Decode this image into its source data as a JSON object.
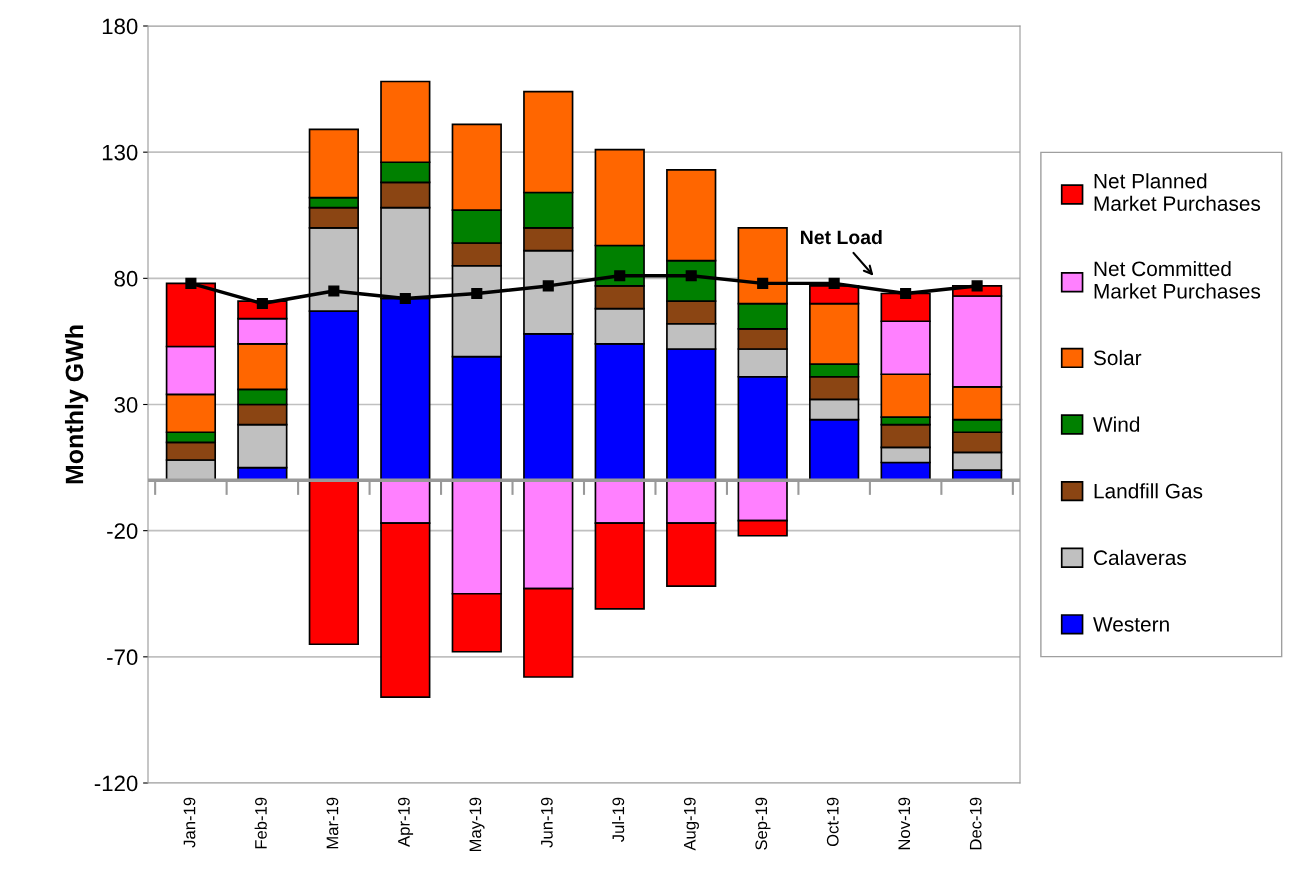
{
  "chart_data": {
    "type": "bar",
    "stacked": true,
    "ylabel": "Monthly GWh",
    "categories": [
      "Jan-19",
      "Feb-19",
      "Mar-19",
      "Apr-19",
      "May-19",
      "Jun-19",
      "Jul-19",
      "Aug-19",
      "Sep-19",
      "Oct-19",
      "Nov-19",
      "Dec-19"
    ],
    "ylim": [
      -120,
      180
    ],
    "yticks": [
      -120,
      -70,
      -20,
      30,
      80,
      130,
      180
    ],
    "grid": "y",
    "legend": "right",
    "series": [
      {
        "name": "Western",
        "color": "#0000ff",
        "values": [
          0,
          5,
          67,
          72,
          49,
          58,
          54,
          52,
          41,
          24,
          7,
          4
        ]
      },
      {
        "name": "Calaveras",
        "color": "#c0c0c0",
        "values": [
          8,
          17,
          33,
          36,
          36,
          33,
          14,
          10,
          11,
          8,
          6,
          7
        ]
      },
      {
        "name": "Landfill Gas",
        "color": "#8b4513",
        "values": [
          7,
          8,
          8,
          10,
          9,
          9,
          9,
          9,
          8,
          9,
          9,
          8
        ]
      },
      {
        "name": "Wind",
        "color": "#008000",
        "values": [
          4,
          6,
          4,
          8,
          13,
          14,
          16,
          16,
          10,
          5,
          3,
          5
        ]
      },
      {
        "name": "Solar",
        "color": "#ff6600",
        "values": [
          15,
          18,
          27,
          32,
          34,
          40,
          38,
          36,
          30,
          24,
          17,
          13
        ]
      },
      {
        "name": "Net Committed Market Purchases",
        "color": "#ff80ff",
        "values": [
          19,
          10,
          null,
          -17,
          -45,
          -43,
          -17,
          -17,
          -16,
          null,
          21,
          36
        ]
      },
      {
        "name": "Net Planned Market Purchases",
        "color": "#ff0000",
        "values": [
          25,
          7,
          -65,
          -69,
          -23,
          -35,
          -34,
          -25,
          -6,
          7,
          11,
          4
        ]
      },
      {
        "name": "Net Load",
        "type": "line",
        "color": "#000000",
        "marker": "square",
        "values": [
          78,
          70,
          75,
          72,
          74,
          77,
          81,
          81,
          78,
          78,
          74,
          77
        ]
      }
    ]
  }
}
